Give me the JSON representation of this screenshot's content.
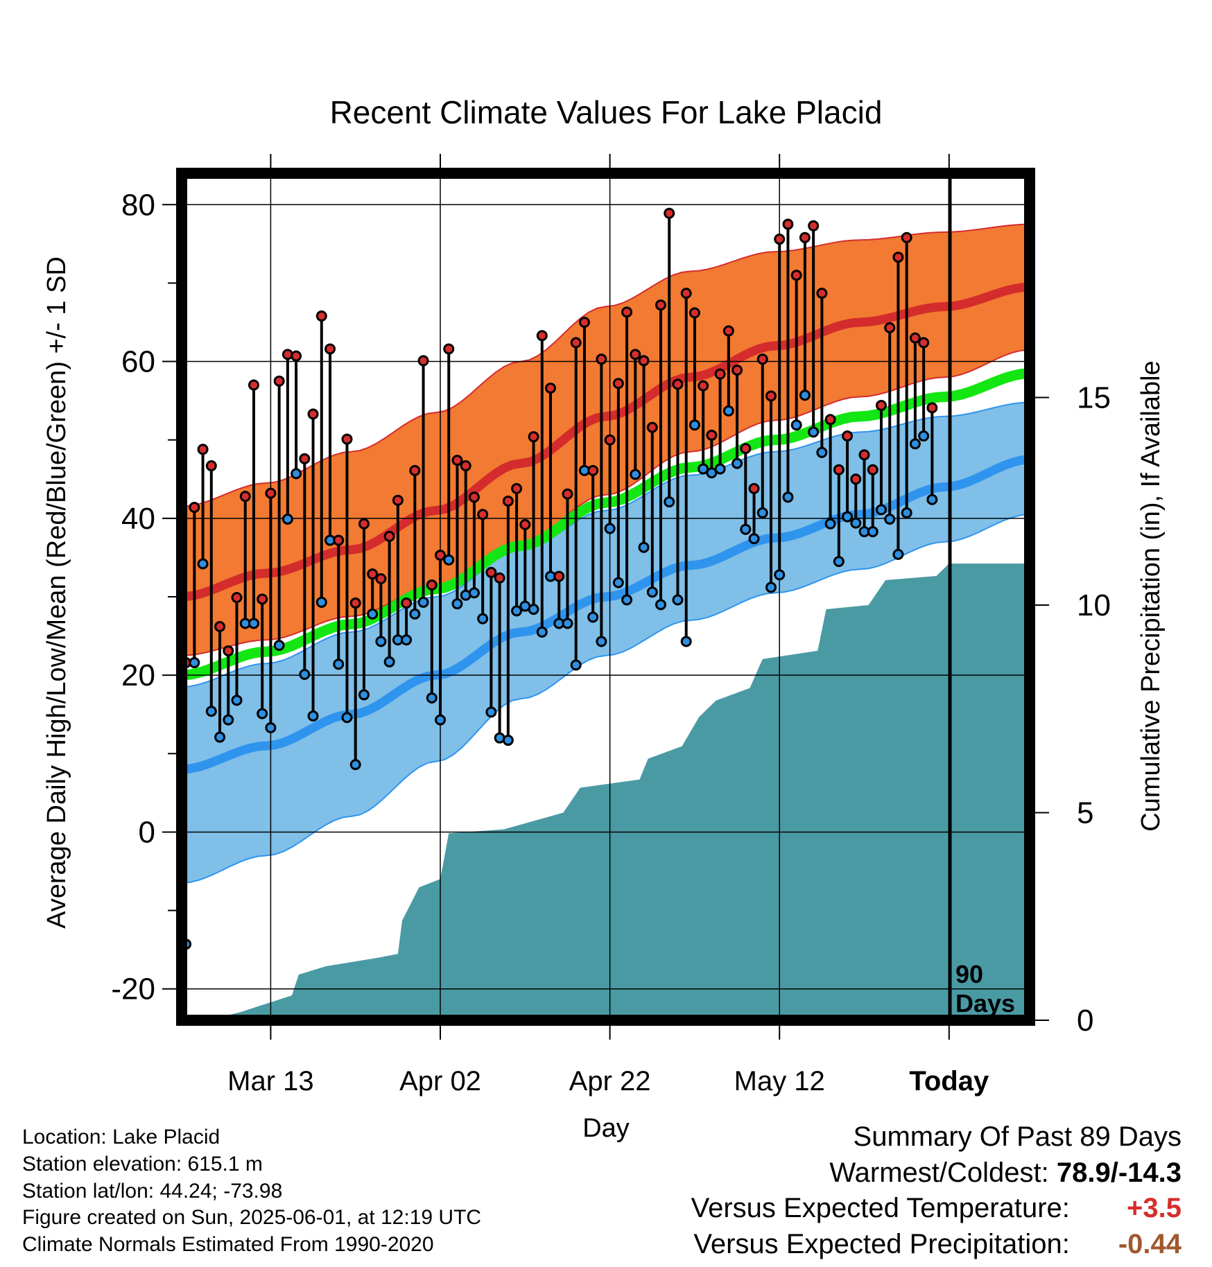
{
  "chart_data": {
    "type": "line",
    "title": "Recent Climate Values For Lake Placid",
    "xlabel": "Day",
    "ylabel_left": "Average Daily High/Low/Mean (Red/Blue/Green) +/- 1 SD",
    "ylabel_right": "Cumulative Precipitation (in), If Available",
    "ylim_left": [
      -24,
      84
    ],
    "ylim_right": [
      0,
      20.4
    ],
    "x_range_days": [
      0,
      100
    ],
    "left_ticks": [
      80,
      60,
      40,
      20,
      0,
      -20
    ],
    "right_ticks": [
      15,
      10,
      5,
      0
    ],
    "x_ticks": [
      {
        "day": 10.5,
        "label": "Mar 13"
      },
      {
        "day": 30.5,
        "label": "Apr 02"
      },
      {
        "day": 50.5,
        "label": "Apr 22"
      },
      {
        "day": 70.5,
        "label": "May 12"
      },
      {
        "day": 90.5,
        "label": "Today",
        "bold": true
      }
    ],
    "today_day": 90.5,
    "today_label_line1": "90",
    "today_label_line2": "Days",
    "normals": {
      "days": [
        0,
        10,
        20,
        30,
        40,
        50,
        60,
        70,
        80,
        90,
        100
      ],
      "high_mean": [
        30,
        33,
        36,
        41,
        47,
        53,
        58,
        62,
        65,
        67,
        69.5
      ],
      "high_upper": [
        41.5,
        44.5,
        48.5,
        53.5,
        60,
        67,
        71.5,
        74,
        75.5,
        76.5,
        77.5
      ],
      "high_lower": [
        22.5,
        24.5,
        27.5,
        31.5,
        37,
        43,
        48.5,
        52.5,
        55.5,
        58,
        61.5
      ],
      "low_mean": [
        8,
        11,
        15,
        20,
        25.5,
        30,
        34,
        37.5,
        40.5,
        44,
        47.5
      ],
      "low_upper": [
        18.5,
        21.5,
        25.5,
        30,
        36,
        41,
        45.5,
        48.5,
        51,
        53,
        54.8
      ],
      "low_lower": [
        -6.5,
        -3,
        2,
        9,
        17,
        22.5,
        27,
        30.5,
        33.5,
        37,
        40.5
      ],
      "mean_mean": [
        20,
        23,
        26.5,
        31,
        36.5,
        42,
        46.5,
        50,
        53,
        55.5,
        58.5
      ]
    },
    "observed": [
      [
        -14.3,
        21.6
      ],
      [
        21.6,
        41.4
      ],
      [
        34.2,
        48.8
      ],
      [
        15.4,
        46.7
      ],
      [
        12.1,
        26.2
      ],
      [
        14.3,
        23.1
      ],
      [
        16.8,
        29.9
      ],
      [
        26.6,
        42.8
      ],
      [
        26.6,
        57.0
      ],
      [
        15.1,
        29.7
      ],
      [
        13.3,
        43.2
      ],
      [
        23.8,
        57.5
      ],
      [
        39.9,
        60.9
      ],
      [
        45.7,
        60.7
      ],
      [
        20.1,
        47.6
      ],
      [
        14.8,
        53.3
      ],
      [
        29.3,
        65.8
      ],
      [
        37.2,
        61.6
      ],
      [
        21.4,
        37.2
      ],
      [
        14.6,
        50.1
      ],
      [
        8.6,
        29.2
      ],
      [
        17.5,
        39.3
      ],
      [
        27.8,
        32.9
      ],
      [
        24.3,
        32.3
      ],
      [
        21.7,
        37.7
      ],
      [
        24.5,
        42.3
      ],
      [
        24.5,
        29.2
      ],
      [
        27.8,
        46.1
      ],
      [
        29.3,
        60.1
      ],
      [
        17.1,
        31.5
      ],
      [
        14.3,
        35.3
      ],
      [
        34.7,
        61.6
      ],
      [
        29.1,
        47.4
      ],
      [
        30.2,
        46.7
      ],
      [
        30.5,
        42.7
      ],
      [
        27.2,
        40.5
      ],
      [
        15.3,
        33.1
      ],
      [
        12.0,
        32.4
      ],
      [
        11.7,
        42.2
      ],
      [
        28.2,
        43.8
      ],
      [
        28.8,
        39.2
      ],
      [
        28.4,
        50.4
      ],
      [
        25.5,
        63.3
      ],
      [
        32.6,
        56.6
      ],
      [
        26.6,
        32.6
      ],
      [
        26.6,
        43.1
      ],
      [
        21.3,
        62.4
      ],
      [
        46.1,
        65.0
      ],
      [
        27.4,
        46.1
      ],
      [
        24.3,
        60.3
      ],
      [
        38.7,
        50.0
      ],
      [
        31.8,
        57.2
      ],
      [
        29.6,
        66.3
      ],
      [
        45.6,
        60.9
      ],
      [
        36.3,
        60.1
      ],
      [
        30.6,
        51.6
      ],
      [
        29.0,
        67.2
      ],
      [
        42.1,
        78.9
      ],
      [
        29.6,
        57.1
      ],
      [
        24.3,
        68.7
      ],
      [
        51.9,
        66.2
      ],
      [
        46.3,
        56.9
      ],
      [
        45.8,
        50.6
      ],
      [
        46.3,
        58.4
      ],
      [
        53.7,
        63.9
      ],
      [
        47.0,
        58.9
      ],
      [
        38.6,
        48.9
      ],
      [
        37.4,
        43.8
      ],
      [
        40.7,
        60.3
      ],
      [
        31.2,
        55.6
      ],
      [
        32.8,
        75.6
      ],
      [
        42.7,
        77.5
      ],
      [
        51.9,
        71.0
      ],
      [
        55.7,
        75.8
      ],
      [
        51.0,
        77.3
      ],
      [
        48.4,
        68.7
      ],
      [
        39.3,
        52.6
      ],
      [
        34.5,
        46.2
      ],
      [
        40.2,
        50.5
      ],
      [
        39.4,
        45.0
      ],
      [
        38.3,
        48.1
      ],
      [
        38.3,
        46.2
      ],
      [
        41.1,
        54.4
      ],
      [
        39.9,
        64.3
      ],
      [
        35.4,
        73.3
      ],
      [
        40.7,
        75.8
      ],
      [
        49.5,
        63.0
      ],
      [
        50.5,
        62.4
      ],
      [
        42.4,
        54.1
      ]
    ],
    "precip_cumulative_steps": [
      [
        0,
        0.0
      ],
      [
        5,
        0.1
      ],
      [
        7,
        0.2
      ],
      [
        13,
        0.6
      ],
      [
        13.8,
        1.1
      ],
      [
        17,
        1.3
      ],
      [
        23,
        1.5
      ],
      [
        25.5,
        1.6
      ],
      [
        26,
        2.4
      ],
      [
        28,
        3.2
      ],
      [
        30.5,
        3.4
      ],
      [
        31.5,
        4.5
      ],
      [
        38,
        4.6
      ],
      [
        41.5,
        4.8
      ],
      [
        45,
        5.0
      ],
      [
        47,
        5.6
      ],
      [
        54,
        5.8
      ],
      [
        55,
        6.3
      ],
      [
        59,
        6.6
      ],
      [
        61,
        7.3
      ],
      [
        63,
        7.7
      ],
      [
        67,
        8.0
      ],
      [
        68.5,
        8.7
      ],
      [
        75,
        8.9
      ],
      [
        76,
        9.9
      ],
      [
        81,
        10.0
      ],
      [
        83,
        10.6
      ],
      [
        89,
        10.7
      ],
      [
        90.5,
        11.0
      ],
      [
        100,
        11.0
      ]
    ]
  },
  "info": {
    "location": "Location: Lake Placid",
    "elevation": "Station elevation: 615.1 m",
    "latlon": "Station lat/lon: 44.24; -73.98",
    "created": "Figure created on Sun, 2025-06-01, at 12:19 UTC",
    "normals_note": "Climate Normals Estimated From 1990-2020"
  },
  "summary": {
    "title": "Summary Of Past 89 Days",
    "warmest_coldest_label": "Warmest/Coldest:",
    "warmest_coldest_value": "78.9/-14.3",
    "temp_label": "Versus Expected Temperature:",
    "temp_value": "+3.5",
    "precip_label": "Versus Expected Precipitation:",
    "precip_value": "-0.44"
  },
  "colors": {
    "high_band": "#f27a32",
    "high_mean": "#d42c2c",
    "low_band": "#7fbfe8",
    "low_mean": "#2f94ee",
    "mean_line": "#13e613",
    "precip_fill": "#4a9aa4",
    "high_dot": "#d62e2e",
    "low_dot": "#2f8fe0"
  }
}
